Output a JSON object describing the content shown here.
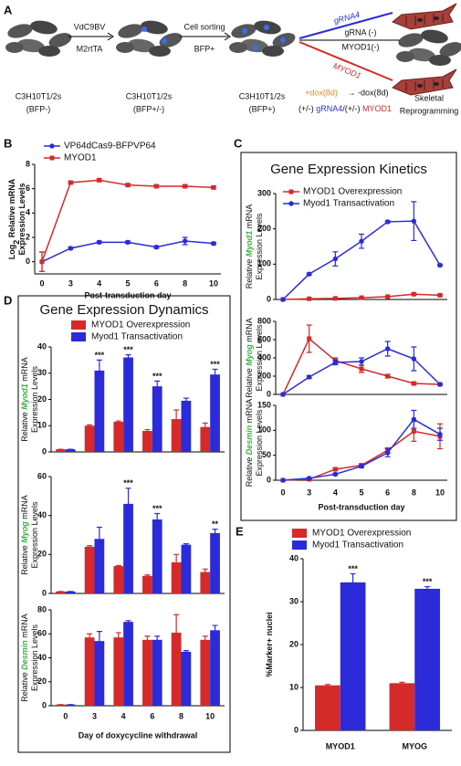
{
  "schematic": {
    "panel": "A",
    "labels": [
      "VdC9BV",
      "M2rtTA",
      "Cell sorting",
      "BFP+",
      "gRNA4",
      "gRNA (-)",
      "MYOD1(-)",
      "MYOD1",
      "C3H10T1/2s",
      "(BFP-)",
      "C3H10T1/2s",
      "(BFP+/-)",
      "C3H10T1/2s",
      "(BFP+)",
      "+dox(8d)",
      "→ -dox(8d)",
      "(+/-) ",
      "gRNA4",
      "/(+/-) ",
      "MYOD1",
      "Skeletal",
      "Reprogramming"
    ]
  },
  "chart_data": [
    {
      "type": "line",
      "panel": "B",
      "xlabel": "Post-transduction day",
      "categories": [
        "0",
        "3",
        "4",
        "5",
        "6",
        "8",
        "10"
      ],
      "ylabel": [
        [
          {
            "text": "Log"
          },
          {
            "text": "2",
            "sub": true
          },
          {
            "text": " Relative mRNA"
          }
        ],
        [
          {
            "text": "Expression Levels"
          }
        ]
      ],
      "ylim": [
        -1,
        8
      ],
      "yticks": [
        0,
        2,
        4,
        6,
        8
      ],
      "series": [
        {
          "name": "VP64dCas9-BFPVP64",
          "color": "#2b2bd9",
          "marker": "circle",
          "values": [
            0,
            1.1,
            1.6,
            1.6,
            1.2,
            1.7,
            1.5
          ],
          "errors": [
            0.8,
            0.1,
            0.1,
            0.1,
            0.1,
            0.3,
            0.1
          ]
        },
        {
          "name": "MYOD1",
          "color": "#d42a2a",
          "marker": "square",
          "values": [
            0,
            6.5,
            6.7,
            6.3,
            6.2,
            6.2,
            6.1
          ],
          "errors": [
            0.8,
            0.1,
            0.1,
            0.1,
            0.1,
            0.1,
            0.1
          ]
        }
      ]
    },
    {
      "type": "line",
      "panel": "C",
      "title": "Gene Expression Kinetics",
      "ylabel": [
        [
          {
            "text": "Relative "
          },
          {
            "text": "Myod1",
            "italic": true,
            "color": "#3cb043"
          },
          {
            "text": " mRNA"
          }
        ],
        [
          {
            "text": "Expression Levels"
          }
        ]
      ],
      "ylim": [
        0,
        300
      ],
      "yticks": [
        0,
        100,
        200,
        300
      ],
      "series": [
        {
          "name": "MYOD1 Overexpression",
          "color": "#d42a2a",
          "marker": "square",
          "values": [
            0,
            2,
            3,
            5,
            8,
            15,
            12
          ],
          "errors": [
            0,
            1,
            1,
            1,
            1,
            3,
            2
          ]
        },
        {
          "name": "Myod1 Transactivation",
          "color": "#2b2bd9",
          "marker": "circle",
          "values": [
            0,
            72,
            115,
            165,
            220,
            222,
            97
          ],
          "errors": [
            0,
            3,
            20,
            20,
            3,
            55,
            3
          ]
        }
      ]
    },
    {
      "type": "line",
      "ylabel": [
        [
          {
            "text": "Relative "
          },
          {
            "text": "Myog",
            "italic": true,
            "color": "#3cb043"
          },
          {
            "text": " mRNA"
          }
        ],
        [
          {
            "text": "Expression Levels"
          }
        ]
      ],
      "ylim": [
        0,
        800
      ],
      "yticks": [
        0,
        200,
        400,
        600,
        800
      ],
      "series": [
        {
          "color": "#d42a2a",
          "marker": "square",
          "values": [
            0,
            610,
            370,
            280,
            200,
            120,
            110
          ],
          "errors": [
            0,
            150,
            30,
            40,
            20,
            15,
            5
          ]
        },
        {
          "color": "#2b2bd9",
          "marker": "circle",
          "values": [
            0,
            190,
            350,
            360,
            500,
            390,
            110
          ],
          "errors": [
            0,
            15,
            25,
            40,
            80,
            130,
            5
          ]
        }
      ]
    },
    {
      "type": "line",
      "xlabel": "Post-transduction day",
      "categories": [
        "0",
        "3",
        "4",
        "5",
        "6",
        "8",
        "10"
      ],
      "ylabel": [
        [
          {
            "text": "Relative "
          },
          {
            "text": "Desmin",
            "italic": true,
            "color": "#3cb043"
          },
          {
            "text": " mRNA"
          }
        ],
        [
          {
            "text": "Expression Levels"
          }
        ]
      ],
      "ylim": [
        0,
        150
      ],
      "yticks": [
        0,
        50,
        100,
        150
      ],
      "series": [
        {
          "color": "#d42a2a",
          "marker": "square",
          "values": [
            0,
            2,
            22,
            30,
            60,
            98,
            88
          ],
          "errors": [
            0,
            1,
            2,
            3,
            5,
            20,
            25
          ]
        },
        {
          "color": "#2b2bd9",
          "marker": "circle",
          "values": [
            0,
            4,
            12,
            28,
            55,
            122,
            92
          ],
          "errors": [
            0,
            1,
            2,
            3,
            8,
            18,
            12
          ]
        }
      ]
    },
    {
      "type": "bar",
      "panel": "D",
      "title": "Gene Expression Dynamics",
      "ylabel": [
        [
          {
            "text": "Relative "
          },
          {
            "text": "Myod1",
            "italic": true,
            "color": "#3cb043"
          },
          {
            "text": " mRNA"
          }
        ],
        [
          {
            "text": "Expression Levels"
          }
        ]
      ],
      "ylim": [
        0,
        40
      ],
      "yticks": [
        0,
        10,
        20,
        30,
        40
      ],
      "series": [
        {
          "name": "MYOD1 Overexpression",
          "color": "#d42a2a",
          "values": [
            1,
            10,
            11.5,
            8,
            12.5,
            9.5
          ],
          "errors": [
            0,
            0.3,
            0.3,
            0.5,
            3.5,
            1.5
          ]
        },
        {
          "name": "Myod1 Transactivation",
          "color": "#2b2bd9",
          "values": [
            1,
            31,
            36,
            25,
            19.5,
            29.5
          ],
          "errors": [
            0,
            4,
            1,
            2,
            1,
            2
          ],
          "significance": [
            null,
            "***",
            "***",
            "***",
            null,
            "***"
          ]
        }
      ]
    },
    {
      "type": "bar",
      "ylabel": [
        [
          {
            "text": "Relative "
          },
          {
            "text": "Myog",
            "italic": true,
            "color": "#3cb043"
          },
          {
            "text": " mRNA"
          }
        ],
        [
          {
            "text": "Expression Levels"
          }
        ]
      ],
      "ylim": [
        0,
        60
      ],
      "yticks": [
        0,
        20,
        40,
        60
      ],
      "series": [
        {
          "color": "#d42a2a",
          "values": [
            1,
            24,
            14,
            9,
            16,
            11
          ],
          "errors": [
            0,
            0.5,
            0.3,
            0.5,
            4,
            1.5
          ]
        },
        {
          "color": "#2b2bd9",
          "values": [
            1,
            28,
            46,
            38,
            25,
            31
          ],
          "errors": [
            0,
            6,
            8,
            3,
            0.5,
            2
          ],
          "significance": [
            null,
            null,
            "***",
            "***",
            null,
            "**"
          ]
        }
      ]
    },
    {
      "type": "bar",
      "xlabel": "Day of doxycycline withdrawal",
      "categories": [
        "0",
        "3",
        "4",
        "6",
        "8",
        "10"
      ],
      "ylabel": [
        [
          {
            "text": "Relative "
          },
          {
            "text": "Desmin",
            "italic": true,
            "color": "#3cb043"
          },
          {
            "text": " mRNA"
          }
        ],
        [
          {
            "text": "Expression Levels"
          }
        ]
      ],
      "ylim": [
        0,
        80
      ],
      "yticks": [
        0,
        20,
        40,
        60,
        80
      ],
      "series": [
        {
          "color": "#d42a2a",
          "values": [
            1,
            57,
            57,
            55,
            61,
            55
          ],
          "errors": [
            0,
            3,
            4,
            3,
            15,
            3
          ]
        },
        {
          "color": "#2b2bd9",
          "values": [
            1,
            54,
            70,
            55,
            45,
            63
          ],
          "errors": [
            0,
            8,
            1,
            3,
            1,
            4
          ]
        }
      ]
    },
    {
      "type": "bar",
      "panel": "E",
      "categories": [
        "MYOD1",
        "MYOG"
      ],
      "ylabel": [
        [
          {
            "text": "%Marker+ nuclei"
          }
        ]
      ],
      "ylim": [
        0,
        40
      ],
      "yticks": [
        0,
        10,
        20,
        30,
        40
      ],
      "series": [
        {
          "name": "MYOD1 Overexpression",
          "color": "#d42a2a",
          "values": [
            10.5,
            11
          ],
          "errors": [
            0.2,
            0.2
          ]
        },
        {
          "name": "Myod1 Transactivation",
          "color": "#2b2bd9",
          "values": [
            34.5,
            33
          ],
          "errors": [
            2,
            0.5
          ],
          "significance": [
            "***",
            "***"
          ]
        }
      ]
    }
  ]
}
